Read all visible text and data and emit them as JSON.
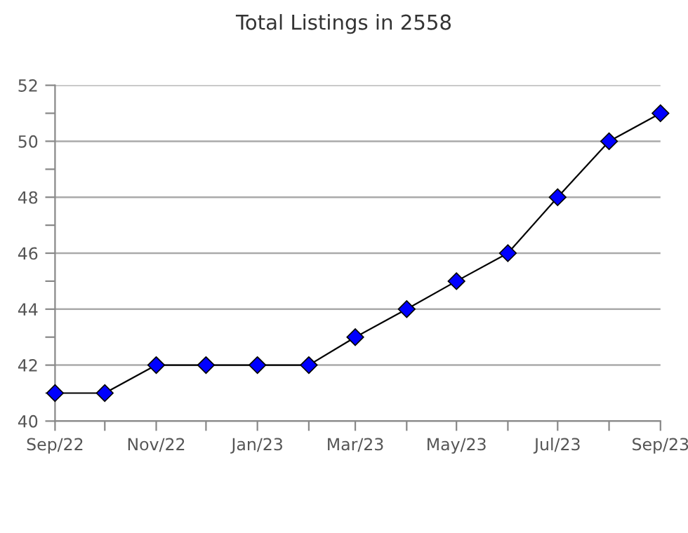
{
  "chart_data": {
    "type": "line",
    "title": "Total Listings in 2558",
    "x": [
      "2022-09",
      "2022-10",
      "2022-11",
      "2022-12",
      "2023-01",
      "2023-02",
      "2023-03",
      "2023-04",
      "2023-05",
      "2023-06",
      "2023-07",
      "2023-08",
      "2023-09"
    ],
    "series": [
      {
        "color": "#0000ff",
        "values": [
          41,
          41,
          42,
          42,
          42,
          42,
          43,
          44,
          45,
          46,
          48,
          50,
          51
        ]
      }
    ],
    "marker": "diamond",
    "line_style": "solid",
    "grid": "y",
    "xlim": [
      "2022-09",
      "2023-09"
    ],
    "xticks": [
      {
        "value": "2022-09",
        "label": "Sep/22"
      },
      {
        "value": "2022-10",
        "label": null
      },
      {
        "value": "2022-11",
        "label": "Nov/22"
      },
      {
        "value": "2022-12",
        "label": null
      },
      {
        "value": "2023-01",
        "label": "Jan/23"
      },
      {
        "value": "2023-02",
        "label": null
      },
      {
        "value": "2023-03",
        "label": "Mar/23"
      },
      {
        "value": "2023-04",
        "label": null
      },
      {
        "value": "2023-05",
        "label": "May/23"
      },
      {
        "value": "2023-06",
        "label": null
      },
      {
        "value": "2023-07",
        "label": "Jul/23"
      },
      {
        "value": "2023-08",
        "label": null
      },
      {
        "value": "2023-09",
        "label": "Sep/23"
      }
    ],
    "ylim": [
      40,
      52
    ],
    "yticks": [
      40,
      {
        "value": 41,
        "label": null
      },
      42,
      {
        "value": 43,
        "label": null
      },
      44,
      {
        "value": 45,
        "label": null
      },
      46,
      {
        "value": 47,
        "label": null
      },
      48,
      {
        "value": 49,
        "label": null
      },
      50,
      {
        "value": 51,
        "label": null
      },
      52
    ]
  }
}
